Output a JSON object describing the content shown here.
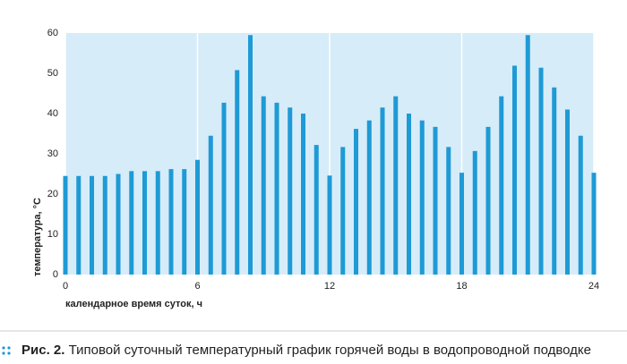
{
  "chart_data": {
    "type": "bar",
    "x": [
      0,
      0.6,
      1.2,
      1.8,
      2.4,
      3,
      3.6,
      4.2,
      4.8,
      5.4,
      6,
      6.6,
      7.2,
      7.8,
      8.4,
      9,
      9.6,
      10.2,
      10.8,
      11.4,
      12,
      12.6,
      13.2,
      13.8,
      14.4,
      15,
      15.6,
      16.2,
      16.8,
      17.4,
      18,
      18.6,
      19.2,
      19.8,
      20.4,
      21,
      21.6,
      22.2,
      22.8,
      23.4,
      24
    ],
    "values": [
      24.5,
      24.5,
      24.5,
      24.5,
      25,
      25.7,
      25.7,
      25.7,
      26.2,
      26.2,
      28.5,
      34.5,
      42.7,
      50.8,
      59.5,
      44.3,
      42.7,
      41.5,
      40,
      32.2,
      24.6,
      31.7,
      36.2,
      38.3,
      41.5,
      44.3,
      40,
      38.3,
      36.7,
      31.7,
      25.3,
      30.7,
      36.7,
      44.3,
      51.9,
      59.5,
      51.4,
      46.5,
      41,
      34.5,
      25.3
    ],
    "color": "#1e9ad6",
    "xlim": [
      0,
      24
    ],
    "xticks": [
      0,
      6,
      12,
      18,
      24
    ],
    "ylim": [
      0,
      60
    ],
    "yticks": [
      0,
      10,
      20,
      30,
      40,
      50,
      60
    ],
    "xlabel": "календарное время суток, ч",
    "ylabel": "температура, °C",
    "grid": true
  },
  "caption": {
    "label": "Рис. 2.",
    "text": "Типовой суточный температурный график горячей воды в водопроводной подводке"
  }
}
